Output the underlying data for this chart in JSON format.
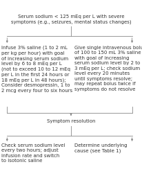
{
  "bg_color": "#ffffff",
  "title_text": "Serum sodium < 125 mEq per L with severe\nsymptoms (e.g., seizures, mental status changes)",
  "left_box_text": "Infuse 3% saline (1 to 2 mL\nper kg per hour) with goal\nof increasing serum sodium\nlevel by 6 to 8 mEq per L\n(not to exceed 10 to 12 mEq\nper L in the first 24 hours or\n18 mEq per L in 48 hours);\nConsider desmopressin, 1 to\n2 mcg every four to six hours",
  "right_box_text": "Give single intravenous bolus\nof 100 to 150 mL 3% saline\nwith goal of increasing\nserum sodium level by 2 to\n3 mEq per L; check sodium\nlevel every 20 minutes\nuntil symptoms resolve;\nmay repeat bolus twice if\nsymptoms do not resolve",
  "middle_text": "Symptom resolution",
  "bottom_left_text": "Check serum sodium level\nevery two hours; adjust\ninfusion rate and switch\nto isotonic saline",
  "bottom_right_text": "Determine underlying\ncause (see Table 1)",
  "font_size": 5.0,
  "text_color": "#333333",
  "line_color": "#888888",
  "arrow_color": "#888888"
}
